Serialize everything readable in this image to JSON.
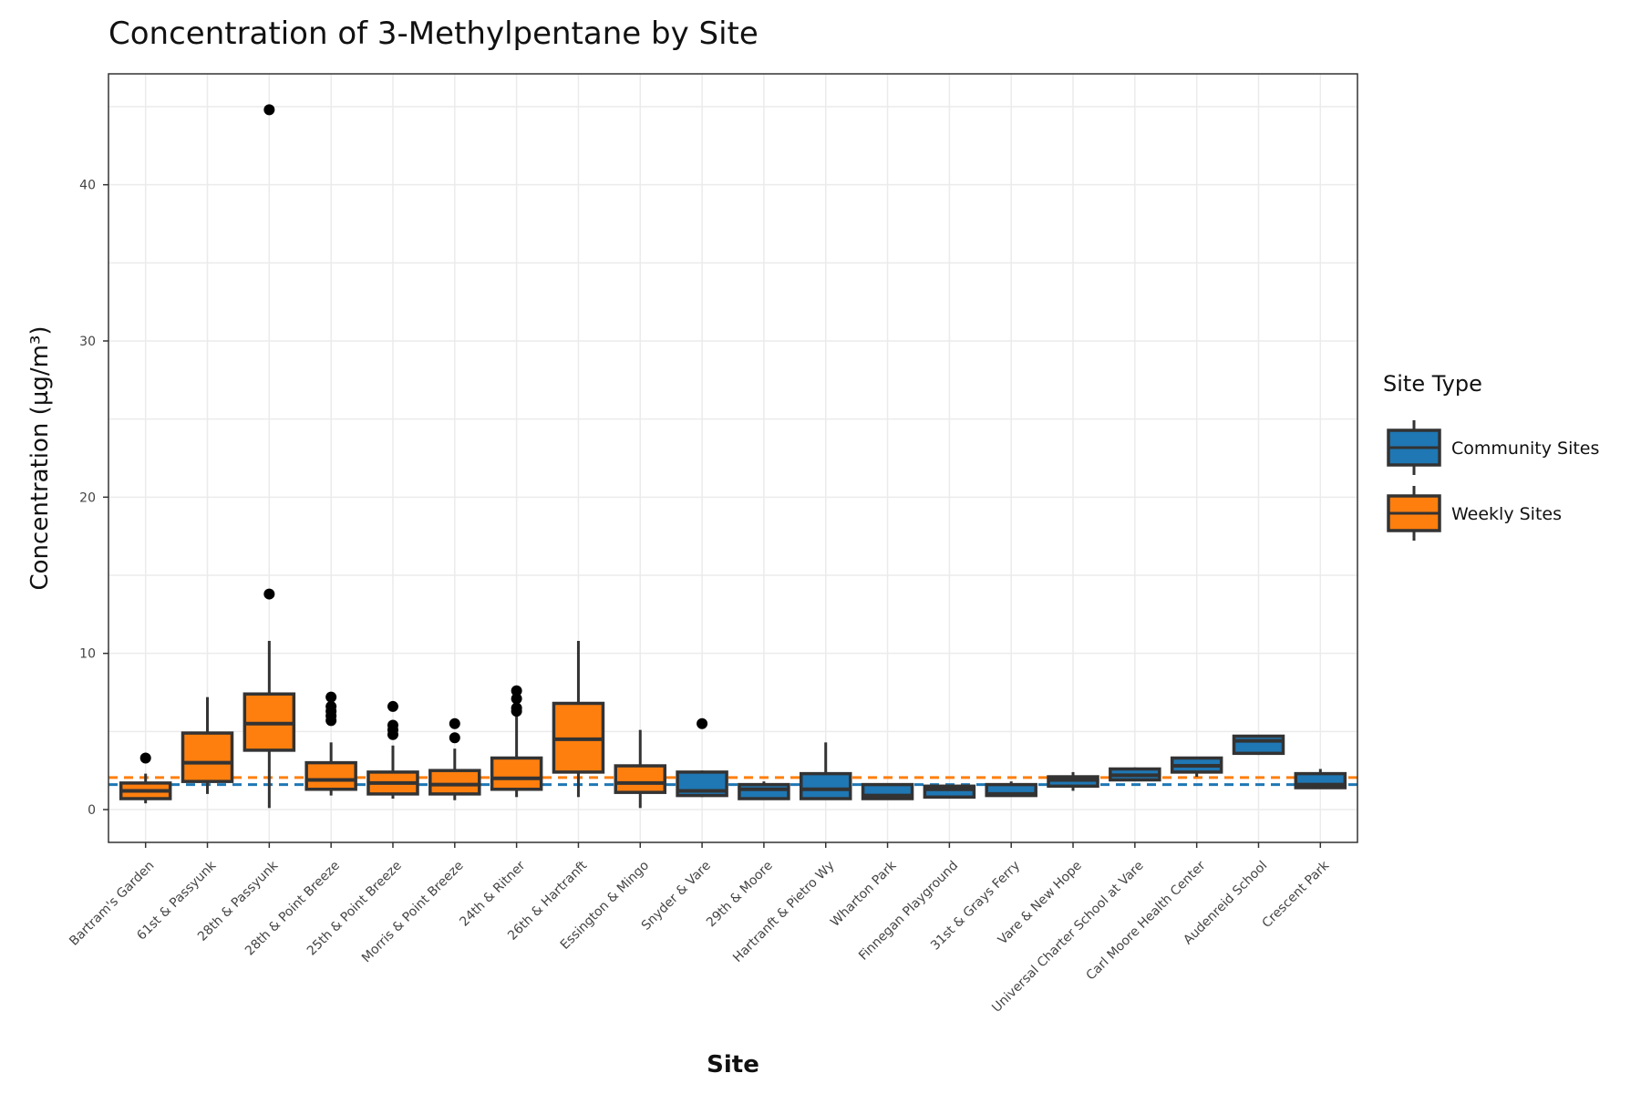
{
  "chart_data": {
    "type": "box",
    "title": "Concentration of 3-Methylpentane by Site",
    "xlabel": "Site",
    "ylabel": "Concentration (µg/m³)",
    "ylim": [
      -2.1,
      47.1
    ],
    "yticks": [
      0,
      10,
      20,
      30,
      40
    ],
    "grid": true,
    "legend": {
      "title": "Site Type",
      "placement": "right",
      "entries": [
        {
          "name": "Community Sites",
          "color": "#1f77b4"
        },
        {
          "name": "Weekly Sites",
          "color": "#ff7f0e"
        }
      ]
    },
    "reference_lines": [
      {
        "series": "Weekly Sites",
        "value": 2.05,
        "color": "#ff7f0e",
        "style": "dashed"
      },
      {
        "series": "Community Sites",
        "value": 1.6,
        "color": "#1f77b4",
        "style": "dashed"
      }
    ],
    "categories": [
      "Bartram's Garden",
      "61st & Passyunk",
      "28th & Passyunk",
      "28th & Point Breeze",
      "25th & Point Breeze",
      "Morris & Point Breeze",
      "24th & Ritner",
      "26th & Hartranft",
      "Essington & Mingo",
      "Snyder & Vare",
      "29th & Moore",
      "Hartranft & Pietro Wy",
      "Wharton Park",
      "Finnegan Playground",
      "31st & Grays Ferry",
      "Vare & New Hope",
      "Universal Charter School at Vare",
      "Carl Moore Health Center",
      "Audenreid School",
      "Crescent Park"
    ],
    "boxes": [
      {
        "site": "Bartram's Garden",
        "type": "Weekly Sites",
        "min": 0.4,
        "q1": 0.7,
        "median": 1.2,
        "q3": 1.7,
        "max": 2.3,
        "outliers": [
          3.3
        ]
      },
      {
        "site": "61st & Passyunk",
        "type": "Weekly Sites",
        "min": 1.0,
        "q1": 1.8,
        "median": 3.0,
        "q3": 4.9,
        "max": 7.2,
        "outliers": []
      },
      {
        "site": "28th & Passyunk",
        "type": "Weekly Sites",
        "min": 0.1,
        "q1": 3.8,
        "median": 5.5,
        "q3": 7.4,
        "max": 10.8,
        "outliers": [
          13.8,
          44.8
        ]
      },
      {
        "site": "28th & Point Breeze",
        "type": "Weekly Sites",
        "min": 0.9,
        "q1": 1.3,
        "median": 1.9,
        "q3": 3.0,
        "max": 4.3,
        "outliers": [
          5.7,
          6.0,
          6.3,
          6.6,
          7.2
        ]
      },
      {
        "site": "25th & Point Breeze",
        "type": "Weekly Sites",
        "min": 0.7,
        "q1": 1.0,
        "median": 1.7,
        "q3": 2.4,
        "max": 4.1,
        "outliers": [
          4.8,
          5.1,
          5.4,
          6.6
        ]
      },
      {
        "site": "Morris & Point Breeze",
        "type": "Weekly Sites",
        "min": 0.6,
        "q1": 1.0,
        "median": 1.6,
        "q3": 2.5,
        "max": 3.9,
        "outliers": [
          4.6,
          5.5
        ]
      },
      {
        "site": "24th & Ritner",
        "type": "Weekly Sites",
        "min": 0.8,
        "q1": 1.3,
        "median": 2.0,
        "q3": 3.3,
        "max": 6.1,
        "outliers": [
          6.3,
          6.5,
          7.1,
          7.6
        ]
      },
      {
        "site": "26th & Hartranft",
        "type": "Weekly Sites",
        "min": 0.8,
        "q1": 2.4,
        "median": 4.5,
        "q3": 6.8,
        "max": 10.8,
        "outliers": []
      },
      {
        "site": "Essington & Mingo",
        "type": "Weekly Sites",
        "min": 0.1,
        "q1": 1.1,
        "median": 1.7,
        "q3": 2.8,
        "max": 5.1,
        "outliers": []
      },
      {
        "site": "Snyder & Vare",
        "type": "Community Sites",
        "min": 0.8,
        "q1": 0.9,
        "median": 1.2,
        "q3": 2.4,
        "max": 2.5,
        "outliers": [
          5.5
        ]
      },
      {
        "site": "29th & Moore",
        "type": "Community Sites",
        "min": 0.7,
        "q1": 0.7,
        "median": 1.3,
        "q3": 1.6,
        "max": 1.8,
        "outliers": []
      },
      {
        "site": "Hartranft & Pietro Wy",
        "type": "Community Sites",
        "min": 0.7,
        "q1": 0.7,
        "median": 1.3,
        "q3": 2.3,
        "max": 4.3,
        "outliers": []
      },
      {
        "site": "Wharton Park",
        "type": "Community Sites",
        "min": 0.7,
        "q1": 0.7,
        "median": 0.9,
        "q3": 1.6,
        "max": 1.6,
        "outliers": []
      },
      {
        "site": "Finnegan Playground",
        "type": "Community Sites",
        "min": 0.8,
        "q1": 0.8,
        "median": 1.3,
        "q3": 1.5,
        "max": 1.5,
        "outliers": []
      },
      {
        "site": "31st & Grays Ferry",
        "type": "Community Sites",
        "min": 0.9,
        "q1": 0.9,
        "median": 1.0,
        "q3": 1.6,
        "max": 1.8,
        "outliers": []
      },
      {
        "site": "Vare & New Hope",
        "type": "Community Sites",
        "min": 1.2,
        "q1": 1.5,
        "median": 1.9,
        "q3": 2.1,
        "max": 2.4,
        "outliers": []
      },
      {
        "site": "Universal Charter School at Vare",
        "type": "Community Sites",
        "min": 1.9,
        "q1": 1.9,
        "median": 2.2,
        "q3": 2.6,
        "max": 2.7,
        "outliers": []
      },
      {
        "site": "Carl Moore Health Center",
        "type": "Community Sites",
        "min": 2.1,
        "q1": 2.4,
        "median": 2.8,
        "q3": 3.3,
        "max": 3.3,
        "outliers": []
      },
      {
        "site": "Audenreid School",
        "type": "Community Sites",
        "min": 3.5,
        "q1": 3.6,
        "median": 4.4,
        "q3": 4.7,
        "max": 4.7,
        "outliers": []
      },
      {
        "site": "Crescent Park",
        "type": "Community Sites",
        "min": 1.4,
        "q1": 1.4,
        "median": 1.6,
        "q3": 2.3,
        "max": 2.6,
        "outliers": []
      }
    ]
  }
}
